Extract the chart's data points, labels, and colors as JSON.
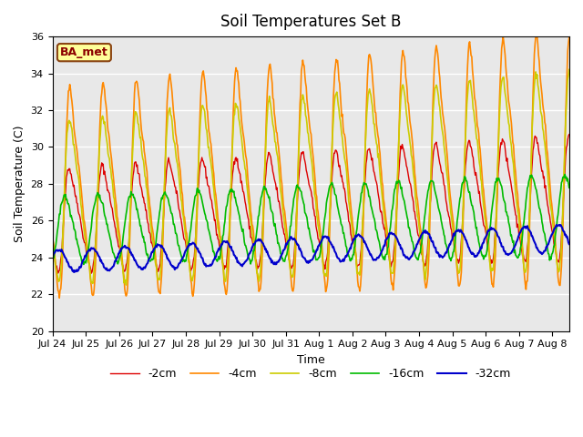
{
  "title": "Soil Temperatures Set B",
  "xlabel": "Time",
  "ylabel": "Soil Temperature (C)",
  "ylim": [
    20,
    36
  ],
  "yticks": [
    20,
    22,
    24,
    26,
    28,
    30,
    32,
    34,
    36
  ],
  "bg_color": "#e8e8e8",
  "legend_label": "BA_met",
  "legend_box_facecolor": "#ffff99",
  "legend_box_edgecolor": "#8B4513",
  "series": [
    {
      "label": "-2cm",
      "color": "#dd0000",
      "lw": 1.0
    },
    {
      "label": "-4cm",
      "color": "#ff8800",
      "lw": 1.2
    },
    {
      "label": "-8cm",
      "color": "#cccc00",
      "lw": 1.2
    },
    {
      "label": "-16cm",
      "color": "#00bb00",
      "lw": 1.2
    },
    {
      "label": "-32cm",
      "color": "#0000cc",
      "lw": 1.5
    }
  ],
  "xtick_labels": [
    "Jul 24",
    "Jul 25",
    "Jul 26",
    "Jul 27",
    "Jul 28",
    "Jul 29",
    "Jul 30",
    "Jul 31",
    "Aug 1",
    "Aug 2",
    "Aug 3",
    "Aug 4",
    "Aug 5",
    "Aug 6",
    "Aug 7",
    "Aug 8"
  ],
  "n_days": 15.5,
  "spd": 48
}
